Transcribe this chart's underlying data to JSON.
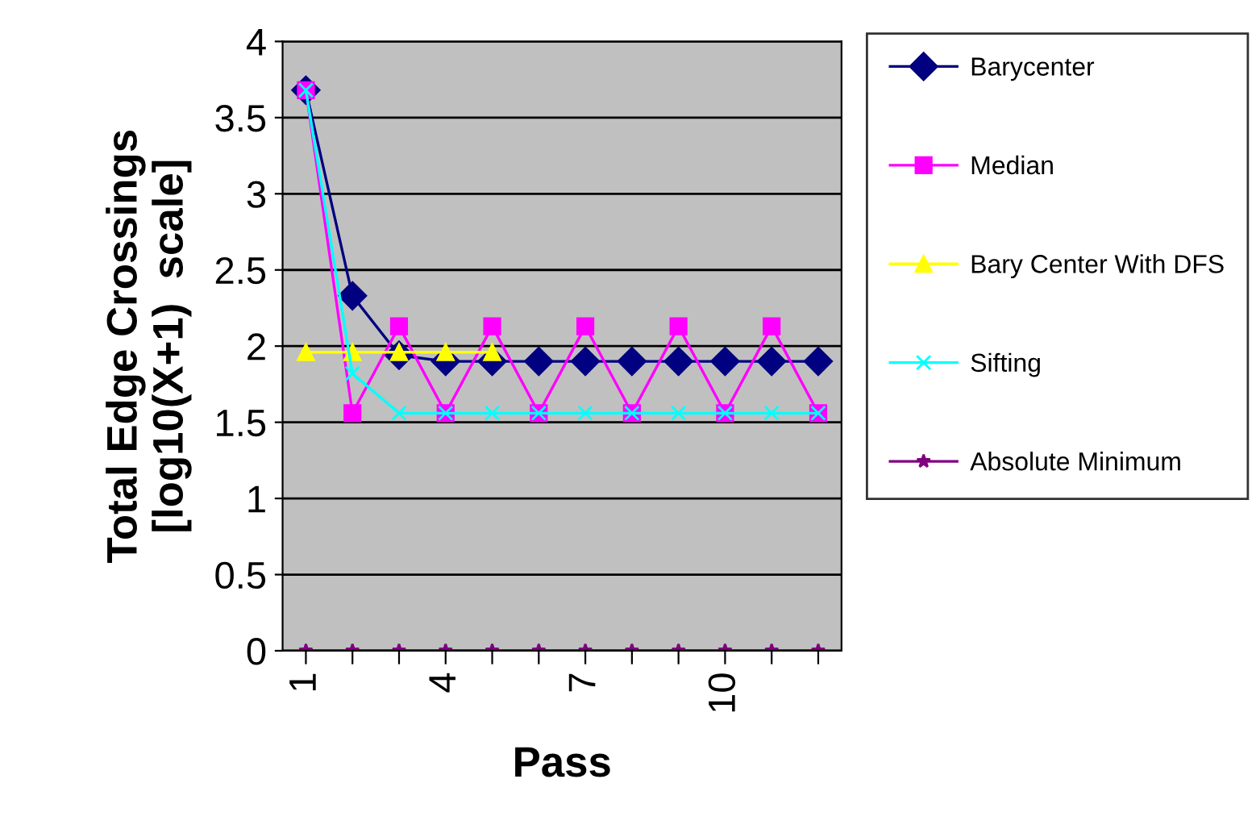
{
  "chart_data": {
    "type": "line",
    "xlabel": "Pass",
    "ylabel": "Total Edge Crossings\n[log10(X+1)  scale]",
    "categories": [
      "1",
      null,
      null,
      "4",
      null,
      null,
      "7",
      null,
      null,
      "10",
      null,
      null
    ],
    "ylim": [
      0,
      4
    ],
    "yticks": [
      0,
      0.5,
      1,
      1.5,
      2,
      2.5,
      3,
      3.5,
      4
    ],
    "grid": "y",
    "legend": "right",
    "series": [
      {
        "name": "Barycenter",
        "color": "#000080",
        "marker": "diamond",
        "values": [
          3.68,
          2.33,
          1.94,
          1.9,
          1.9,
          1.9,
          1.9,
          1.9,
          1.9,
          1.9,
          1.9,
          1.9
        ]
      },
      {
        "name": "Median",
        "color": "#ff00ff",
        "marker": "square",
        "values": [
          3.68,
          1.56,
          2.13,
          1.56,
          2.13,
          1.56,
          2.13,
          1.56,
          2.13,
          1.56,
          2.13,
          1.56
        ]
      },
      {
        "name": "Bary Center With DFS",
        "color": "#ffff00",
        "marker": "triangle",
        "values": [
          1.96,
          1.96,
          1.96,
          1.96,
          1.96,
          null,
          null,
          null,
          null,
          null,
          null,
          null
        ]
      },
      {
        "name": "Sifting",
        "color": "#00ffff",
        "marker": "cross",
        "values": [
          3.68,
          1.82,
          1.56,
          1.56,
          1.56,
          1.56,
          1.56,
          1.56,
          1.56,
          1.56,
          1.56,
          1.56
        ]
      },
      {
        "name": "Absolute Minimum",
        "color": "#800080",
        "marker": "star",
        "values": [
          0,
          0,
          0,
          0,
          0,
          0,
          0,
          0,
          0,
          0,
          0,
          0
        ]
      }
    ]
  }
}
